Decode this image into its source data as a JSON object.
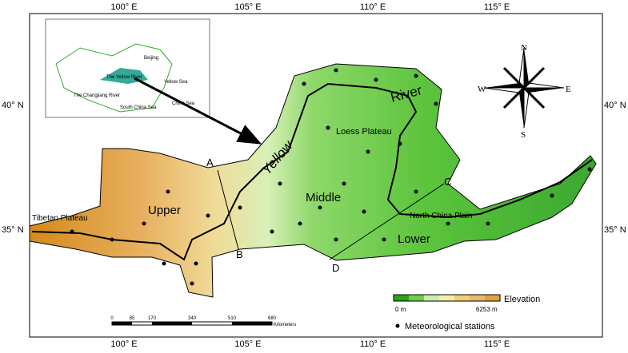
{
  "axes": {
    "top": [
      "100° E",
      "105° E",
      "110° E",
      "115° E"
    ],
    "bottom": [
      "100° E",
      "105° E",
      "110° E",
      "115° E"
    ],
    "left": [
      "40° N",
      "35° N"
    ],
    "right": [
      "40° N",
      "35° N"
    ]
  },
  "inset": {
    "labels": [
      "Beijing",
      "The Yellow River",
      "Yellow Sea",
      "The Changjiang River",
      "China Sea",
      "South China Sea"
    ]
  },
  "map": {
    "labels": [
      "A",
      "B",
      "C",
      "D",
      "Yellow",
      "River",
      "Middle",
      "Upper",
      "Lower",
      "Loess Plateau",
      "North China Plain",
      "Tibetan Plateau"
    ]
  },
  "compass": {
    "labels": [
      "N",
      "S",
      "E",
      "W"
    ]
  },
  "legend": {
    "title": "Elevation",
    "min": "0 m",
    "max": "6253 m",
    "stations": "Meteorological stations"
  },
  "scale_bar": {
    "ticks": [
      "0",
      "85",
      "170",
      "340",
      "510",
      "680"
    ],
    "unit": "Kilometers"
  }
}
